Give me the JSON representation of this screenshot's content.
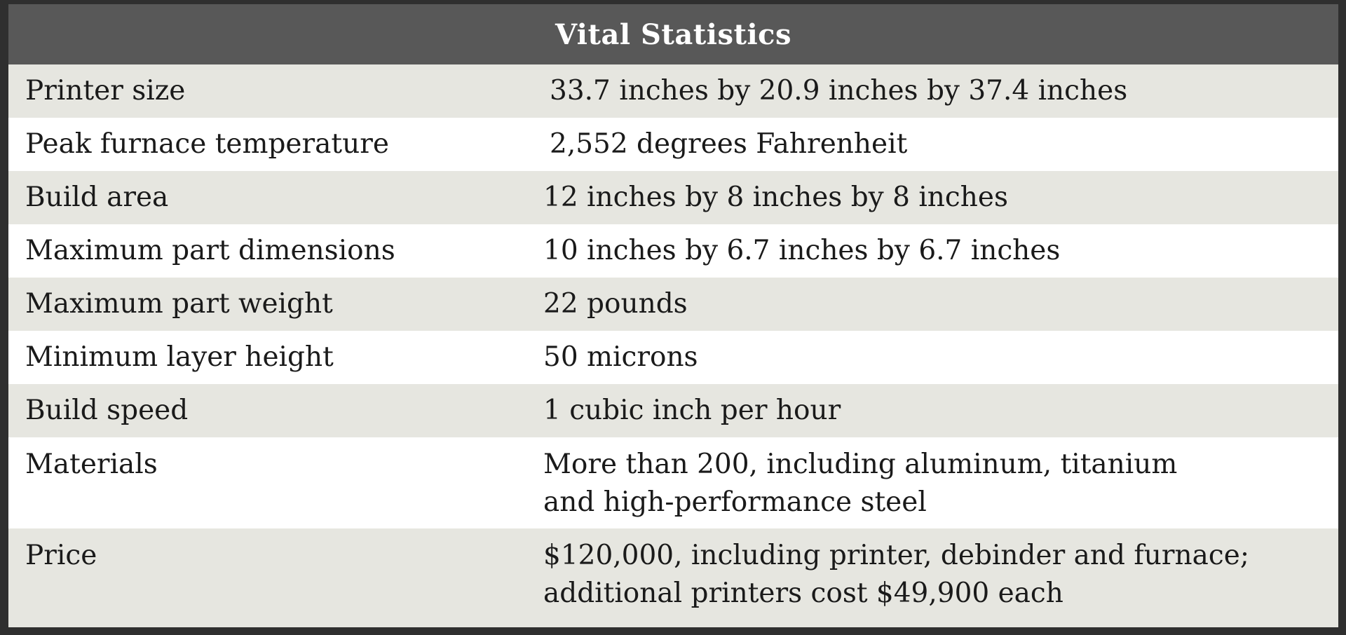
{
  "table": {
    "title": "Vital Statistics",
    "rows": [
      {
        "label": "Printer size",
        "value": "33.7 inches by 20.9 inches by 37.4 inches"
      },
      {
        "label": "Peak furnace temperature",
        "value": "2,552 degrees Fahrenheit"
      },
      {
        "label": "Build area",
        "value": "12 inches by 8 inches by 8 inches"
      },
      {
        "label": "Maximum part dimensions",
        "value": "10 inches by 6.7 inches by 6.7 inches"
      },
      {
        "label": "Maximum part weight",
        "value": "22 pounds"
      },
      {
        "label": "Minimum layer height",
        "value": "50 microns"
      },
      {
        "label": "Build speed",
        "value": "1 cubic inch per hour"
      },
      {
        "label": "Materials",
        "value_line1": "More than 200, including aluminum, titanium",
        "value_line2": "and high-performance steel"
      },
      {
        "label": "Price",
        "value_line1": "$120,000, including printer, debinder and furnace;",
        "value_line2": "additional printers cost $49,900 each"
      }
    ]
  },
  "colors": {
    "header_bg": "#585858",
    "shaded_row": "#e6e6e0",
    "plain_row": "#ffffff",
    "border": "#2f2f2f"
  }
}
